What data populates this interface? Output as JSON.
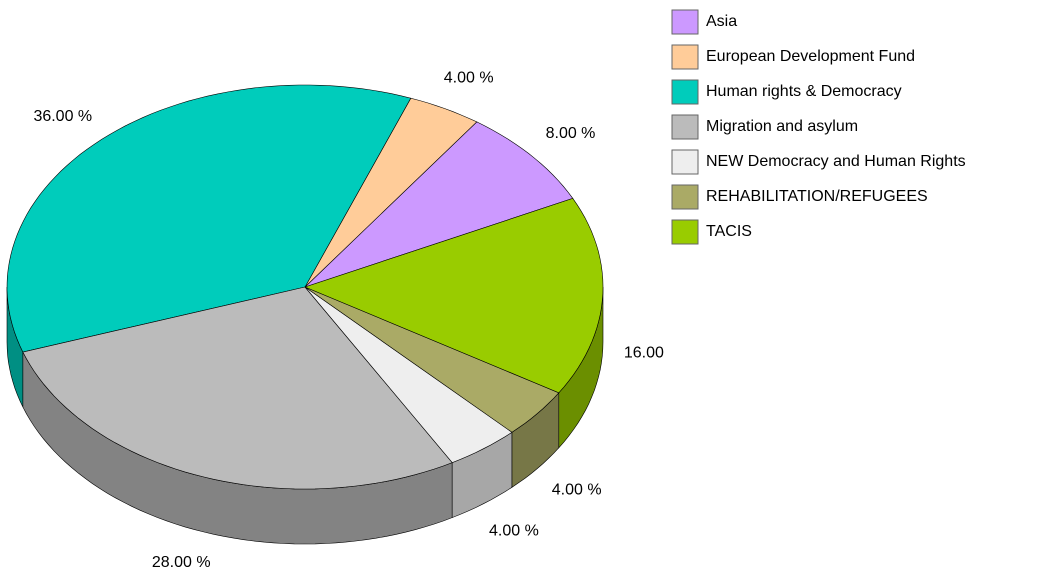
{
  "chart_data": {
    "type": "pie3d",
    "categories": [
      "Asia",
      "European Development Fund",
      "Human rights & Democracy",
      "Migration and asylum",
      "NEW Democracy and Human Rights",
      "REHABILITATION/REFUGEES",
      "TACIS"
    ],
    "values": [
      8,
      4,
      36,
      28,
      4,
      4,
      16
    ],
    "value_labels": [
      "8.00 %",
      "4.00 %",
      "36.00 %",
      "28.00 %",
      "4.00 %",
      "4.00 %",
      "16.00 %"
    ],
    "colors": [
      "#cc99ff",
      "#ffcc99",
      "#00ccbb",
      "#bbbbbb",
      "#eeeeee",
      "#aaaa66",
      "#99cc00"
    ],
    "legend": "right"
  }
}
